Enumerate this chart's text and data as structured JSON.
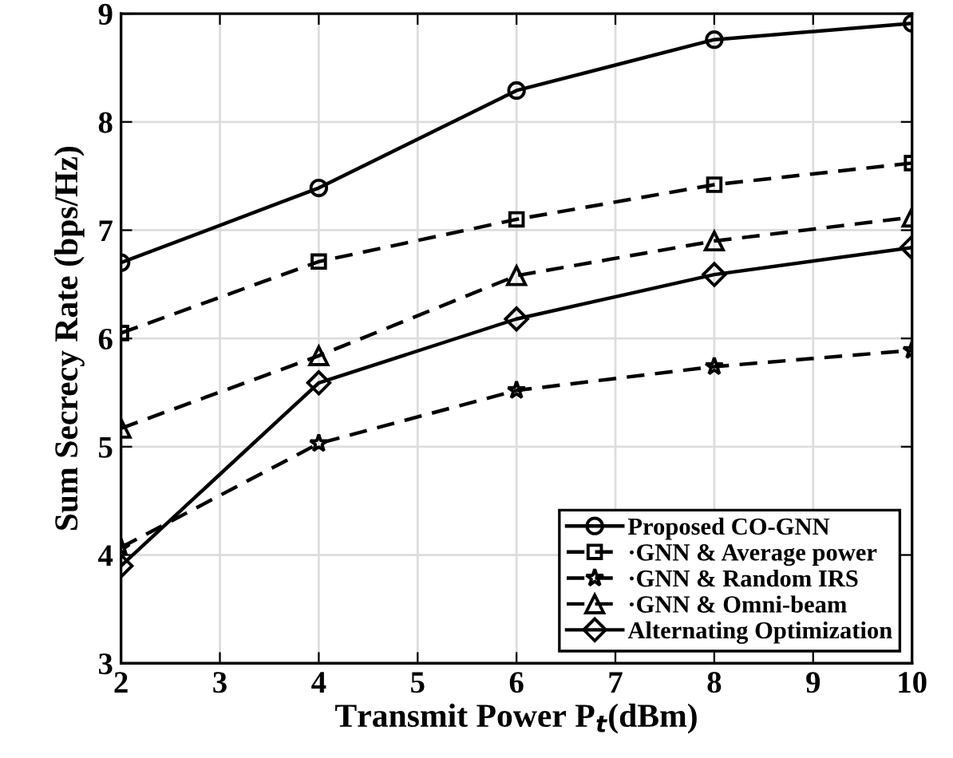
{
  "chart_data": {
    "type": "line",
    "xlabel": "Transmit Power P$_{t}$(dBm)",
    "ylabel": "Sum Secrecy Rate (bps/Hz)",
    "x": [
      2,
      4,
      6,
      8,
      10
    ],
    "xlim": [
      2,
      10
    ],
    "xticks": [
      2,
      3,
      4,
      5,
      6,
      7,
      8,
      9,
      10
    ],
    "ylim": [
      3,
      9
    ],
    "yticks": [
      3,
      4,
      5,
      6,
      7,
      8,
      9
    ],
    "grid": true,
    "legend": "bottom right",
    "series": [
      {
        "name": "Proposed CO-GNN",
        "color": "#000000",
        "marker": "circle",
        "line_style": "solid",
        "values": [
          6.7,
          7.39,
          8.29,
          8.76,
          8.91
        ]
      },
      {
        "name": "·GNN & Average power",
        "color": "#000000",
        "marker": "square",
        "line_style": "dashed",
        "values": [
          6.05,
          6.71,
          7.1,
          7.42,
          7.62
        ]
      },
      {
        "name": "·GNN & Random IRS",
        "color": "#000000",
        "marker": "star",
        "line_style": "dashed",
        "values": [
          4.07,
          5.03,
          5.52,
          5.74,
          5.89
        ]
      },
      {
        "name": "·GNN & Omni-beam",
        "color": "#000000",
        "marker": "triangle",
        "line_style": "dashed",
        "values": [
          5.17,
          5.84,
          6.58,
          6.9,
          7.12
        ]
      },
      {
        "name": "Alternating Optimization",
        "color": "#000000",
        "marker": "diamond",
        "line_style": "solid",
        "values": [
          3.9,
          5.59,
          6.18,
          6.59,
          6.84
        ]
      }
    ]
  }
}
